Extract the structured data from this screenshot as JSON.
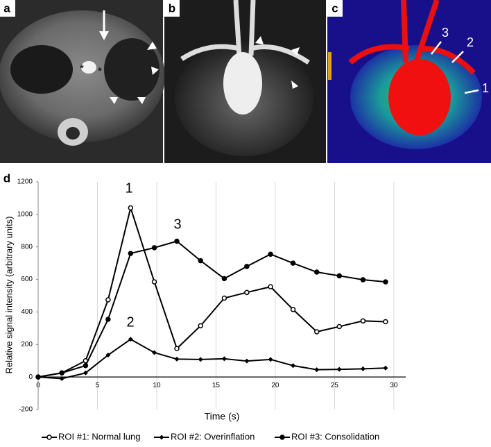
{
  "panels": [
    {
      "label": "a",
      "annotations": [
        "*",
        "*"
      ]
    },
    {
      "label": "b"
    },
    {
      "label": "c",
      "annotations": [
        "3",
        "2",
        "1"
      ]
    }
  ],
  "chart_data": {
    "type": "line",
    "panel_label": "d",
    "x_label": "Time (s)",
    "y_label": "Relative signal intensity (arbitrary units)",
    "x": [
      0,
      2,
      4,
      5.9,
      7.8,
      9.8,
      11.7,
      13.7,
      15.7,
      17.6,
      19.6,
      21.5,
      23.5,
      25.4,
      27.4,
      29.3
    ],
    "series": [
      {
        "name": "ROI #1: Normal lung",
        "marker": "open-circle",
        "color": "#000000",
        "values": [
          0,
          25,
          100,
          475,
          1040,
          585,
          175,
          315,
          485,
          520,
          555,
          415,
          278,
          310,
          345,
          340
        ]
      },
      {
        "name": "ROI #2: Overinflation",
        "marker": "diamond",
        "color": "#000000",
        "values": [
          0,
          -10,
          25,
          135,
          232,
          150,
          110,
          108,
          112,
          98,
          108,
          70,
          45,
          47,
          50,
          55
        ]
      },
      {
        "name": "ROI #3: Consolidation",
        "marker": "filled-circle",
        "color": "#000000",
        "values": [
          0,
          25,
          70,
          355,
          760,
          795,
          835,
          715,
          605,
          680,
          755,
          700,
          645,
          622,
          598,
          585
        ]
      }
    ],
    "annotations": [
      "1",
      "2",
      "3"
    ],
    "xlim": [
      0,
      31
    ],
    "xticks": [
      0,
      5,
      10,
      15,
      20,
      25,
      30
    ],
    "ylim": [
      -200,
      1200
    ],
    "yticks": [
      -200,
      0,
      200,
      400,
      600,
      800,
      1000,
      1200
    ],
    "grid": "x",
    "legend": "bottom"
  }
}
